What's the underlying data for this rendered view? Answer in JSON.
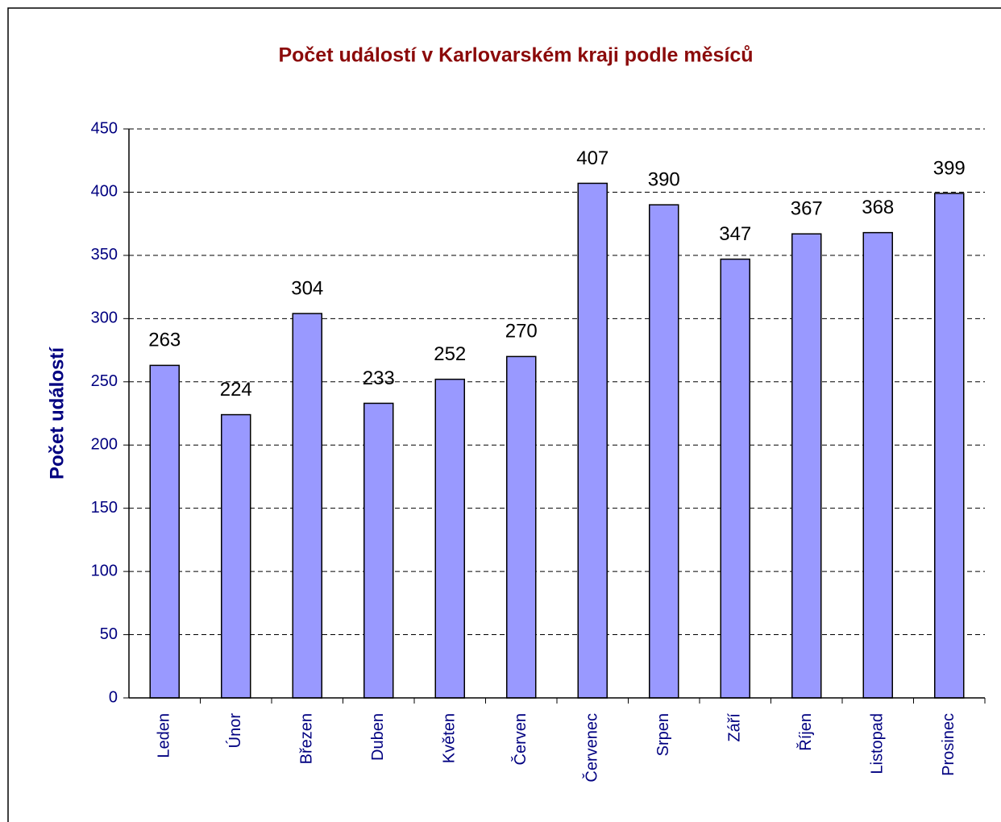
{
  "chart_data": {
    "type": "bar",
    "title": "Počet událostí v Karlovarském kraji podle měsíců",
    "ylabel": "Počet událostí",
    "categories": [
      "Leden",
      "Únor",
      "Březen",
      "Duben",
      "Květen",
      "Červen",
      "Červenec",
      "Srpen",
      "Září",
      "Říjen",
      "Listopad",
      "Prosinec"
    ],
    "values": [
      263,
      224,
      304,
      233,
      252,
      270,
      407,
      390,
      347,
      367,
      368,
      399
    ],
    "color": "#9999ff",
    "ylim": [
      0,
      450
    ],
    "yticks": [
      0,
      50,
      100,
      150,
      200,
      250,
      300,
      350,
      400,
      450
    ],
    "grid": true
  }
}
